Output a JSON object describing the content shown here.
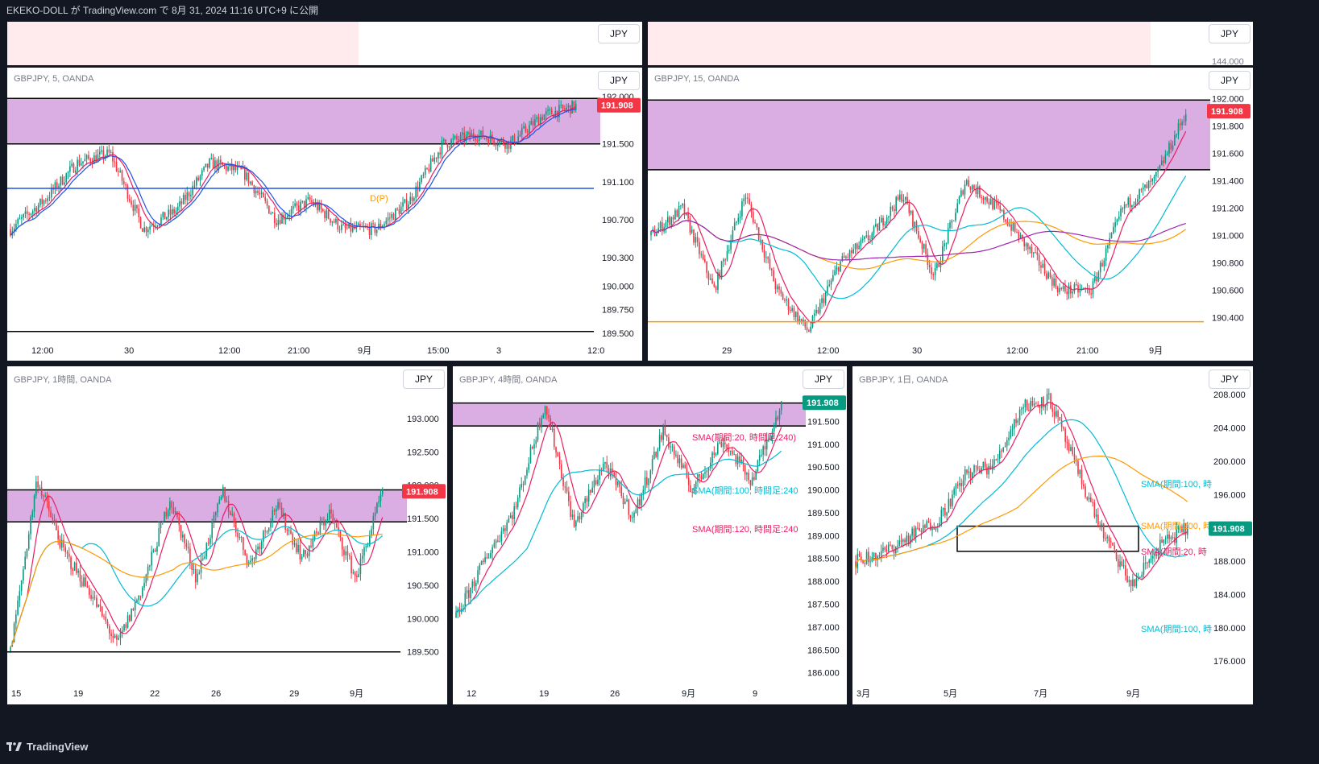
{
  "header": {
    "title": "EKEKO-DOLL が TradingView.com で 8月 31, 2024 11:16 UTC+9 に公開"
  },
  "footer": {
    "brand": "TradingView"
  },
  "colors": {
    "zone": "#ce93d8",
    "demand_cyan": "#80deea",
    "supply_pink": "#f48fb1",
    "bull": "#089981",
    "bear": "#f23645",
    "sma_pink": "#e91e63",
    "sma_cyan": "#00bcd4",
    "sma_orange": "#ff9800",
    "sma_purple": "#9c27b0",
    "pivot": "#1e53e5",
    "label_red": "#f23645",
    "label_green": "#089981"
  },
  "strip_panels": [
    {
      "currency": "JPY"
    },
    {
      "currency": "JPY",
      "tick": "144.000"
    }
  ],
  "panels": [
    {
      "id": "m5",
      "symbol": "GBPJPY, 5, OANDA",
      "currency": "JPY",
      "price_label": "191.908",
      "label_color": "#f23645",
      "y_ticks": [
        "192.000",
        "191.500",
        "191.100",
        "190.700",
        "190.300",
        "190.000",
        "189.750",
        "189.500"
      ],
      "x_ticks": [
        "12:00",
        "30",
        "12:00",
        "21:00",
        "9月",
        "15:00",
        "3",
        "12:0"
      ],
      "annotations": [
        {
          "text": "D(P)",
          "color": "#ff9800"
        }
      ],
      "chart_data": {
        "type": "candlestick",
        "symbol": "GBPJPY",
        "timeframe": "5",
        "source": "OANDA",
        "last_price": 191.908,
        "ylim": [
          189.45,
          192.05
        ],
        "close_path": [
          190.6,
          190.9,
          191.3,
          191.4,
          190.6,
          190.8,
          191.3,
          191.2,
          190.7,
          190.9,
          190.6,
          190.6,
          190.9,
          191.5,
          191.6,
          191.5,
          191.8,
          191.9
        ],
        "zones": [
          {
            "from": 191.5,
            "to": 191.98,
            "color": "purple"
          }
        ],
        "lines": [
          {
            "value": 191.03,
            "name": "D(P)"
          },
          {
            "value": 189.52
          }
        ]
      }
    },
    {
      "id": "m15",
      "symbol": "GBPJPY, 15, OANDA",
      "currency": "JPY",
      "price_label": "191.908",
      "label_color": "#f23645",
      "y_ticks": [
        "192.000",
        "191.800",
        "191.600",
        "191.400",
        "191.200",
        "191.000",
        "190.800",
        "190.600",
        "190.400"
      ],
      "x_ticks": [
        "29",
        "12:00",
        "30",
        "12:00",
        "21:00",
        "9月"
      ],
      "annotations": [],
      "chart_data": {
        "type": "candlestick",
        "symbol": "GBPJPY",
        "timeframe": "15",
        "source": "OANDA",
        "last_price": 191.908,
        "ylim": [
          190.25,
          192.05
        ],
        "close_path": [
          191.0,
          191.2,
          190.6,
          191.3,
          190.6,
          190.3,
          190.8,
          191.0,
          191.3,
          190.7,
          191.4,
          191.2,
          190.9,
          190.6,
          190.6,
          191.2,
          191.4,
          191.9
        ],
        "zones": [
          {
            "from": 191.48,
            "to": 191.99,
            "color": "purple"
          }
        ],
        "lines": [
          {
            "value": 190.37
          }
        ],
        "sma": [
          "pink",
          "cyan",
          "orange",
          "purple"
        ]
      }
    },
    {
      "id": "h1",
      "symbol": "GBPJPY, 1時間, OANDA",
      "currency": "JPY",
      "price_label": "191.908",
      "label_color": "#f23645",
      "y_ticks": [
        "193.000",
        "192.500",
        "192.000",
        "191.500",
        "191.000",
        "190.500",
        "190.000",
        "189.500"
      ],
      "x_ticks": [
        "15",
        "19",
        "22",
        "26",
        "29",
        "9月"
      ],
      "annotations": [],
      "chart_data": {
        "type": "candlestick",
        "symbol": "GBPJPY",
        "timeframe": "1時間",
        "source": "OANDA",
        "last_price": 191.908,
        "ylim": [
          189.05,
          193.3
        ],
        "close_path": [
          189.5,
          192.1,
          191.0,
          190.4,
          189.6,
          190.5,
          191.8,
          190.6,
          191.9,
          190.8,
          191.7,
          190.9,
          191.6,
          190.6,
          191.9
        ],
        "zones": [
          {
            "from": 191.45,
            "to": 191.93,
            "color": "purple"
          }
        ],
        "lines": [
          {
            "value": 189.5
          }
        ]
      }
    },
    {
      "id": "h4",
      "symbol": "GBPJPY, 4時間, OANDA",
      "currency": "JPY",
      "price_label": "191.908",
      "label_color": "#089981",
      "y_ticks": [
        "191.500",
        "191.000",
        "190.500",
        "190.000",
        "189.500",
        "189.000",
        "188.500",
        "188.000",
        "187.500",
        "187.000",
        "186.500",
        "186.000"
      ],
      "x_ticks": [
        "12",
        "19",
        "26",
        "9月",
        "9"
      ],
      "annotations": [
        {
          "text": "SMA(期間:20, 時間足:240)",
          "color": "#e91e63"
        },
        {
          "text": "SMA(期間:100, 時間足:240",
          "color": "#00bcd4"
        },
        {
          "text": "SMA(期間:120, 時間足:240",
          "color": "#e91e63"
        }
      ],
      "chart_data": {
        "type": "candlestick",
        "symbol": "GBPJPY",
        "timeframe": "4時間",
        "source": "OANDA",
        "last_price": 191.908,
        "ylim": [
          185.8,
          192.0
        ],
        "close_path": [
          187.2,
          188.5,
          189.6,
          191.9,
          189.2,
          190.6,
          189.4,
          191.3,
          190.0,
          191.1,
          190.2,
          191.9
        ],
        "zones": [
          {
            "from": 191.4,
            "to": 191.9,
            "color": "purple"
          }
        ],
        "sma": [
          {
            "name": "SMA(期間:20, 時間足:240)"
          },
          {
            "name": "SMA(期間:100, 時間足:240"
          },
          {
            "name": "SMA(期間:120, 時間足:240"
          }
        ]
      }
    },
    {
      "id": "d1",
      "symbol": "GBPJPY, 1日, OANDA",
      "currency": "JPY",
      "price_label": "191.908",
      "label_color": "#089981",
      "y_ticks": [
        "208.000",
        "204.000",
        "200.000",
        "196.000",
        "192.000",
        "188.000",
        "184.000",
        "180.000",
        "176.000"
      ],
      "x_ticks": [
        "3月",
        "5月",
        "7月",
        "9月"
      ],
      "annotations": [
        {
          "text": "SMA(期間:100, 時",
          "color": "#00bcd4"
        },
        {
          "text": "SMA(期間:200, 時",
          "color": "#ff9800"
        },
        {
          "text": "SMA(期間:20, 時",
          "color": "#e91e63"
        },
        {
          "text": "SMA(期間:100, 時",
          "color": "#00bcd4"
        }
      ],
      "chart_data": {
        "type": "candlestick",
        "symbol": "GBPJPY",
        "timeframe": "1日",
        "source": "OANDA",
        "last_price": 191.908,
        "ylim": [
          173.5,
          208.5
        ],
        "close_path": [
          188.0,
          189.0,
          191.0,
          193.0,
          198.5,
          199.5,
          206.5,
          207.5,
          199.0,
          191.0,
          185.0,
          190.0,
          191.9
        ],
        "zones": [
          {
            "from": 191.5,
            "to": 192.2,
            "color": "black-box"
          }
        ],
        "sma": [
          {
            "name": "SMA(期間:100, 時",
            "color": "cyan"
          },
          {
            "name": "SMA(期間:200, 時",
            "color": "orange"
          },
          {
            "name": "SMA(期間:20, 時",
            "color": "pink"
          }
        ]
      }
    }
  ]
}
